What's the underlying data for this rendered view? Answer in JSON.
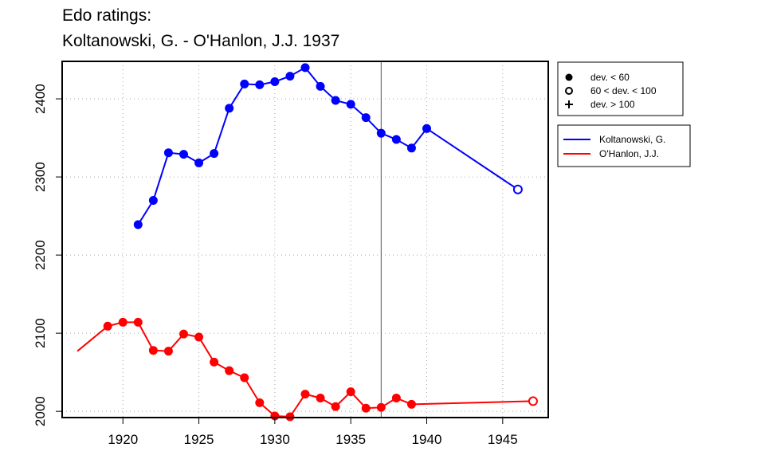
{
  "title_line1": "Edo ratings:",
  "title_line2": "Koltanowski, G. - O'Hanlon, J.J. 1937",
  "chart_data": {
    "type": "line",
    "title": "Edo ratings: Koltanowski, G. - O'Hanlon, J.J. 1937",
    "xlabel": "",
    "ylabel": "",
    "xlim": [
      1916,
      1948
    ],
    "ylim": [
      1992,
      2448
    ],
    "xticks": [
      1920,
      1925,
      1930,
      1935,
      1940,
      1945
    ],
    "yticks": [
      2000,
      2100,
      2200,
      2300,
      2400
    ],
    "grid": true,
    "vline_x": 1937,
    "marker_legend": [
      {
        "symbol": "filled-circle",
        "label": "dev. < 60"
      },
      {
        "symbol": "open-circle",
        "label": "60 < dev. < 100"
      },
      {
        "symbol": "plus",
        "label": "dev. > 100"
      }
    ],
    "series": [
      {
        "name": "Koltanowski, G.",
        "color": "#0000ff",
        "points": [
          {
            "x": 1921,
            "y": 2239,
            "m": "filled"
          },
          {
            "x": 1922,
            "y": 2270,
            "m": "filled"
          },
          {
            "x": 1923,
            "y": 2331,
            "m": "filled"
          },
          {
            "x": 1924,
            "y": 2329,
            "m": "filled"
          },
          {
            "x": 1925,
            "y": 2318,
            "m": "filled"
          },
          {
            "x": 1926,
            "y": 2330,
            "m": "filled"
          },
          {
            "x": 1927,
            "y": 2388,
            "m": "filled"
          },
          {
            "x": 1928,
            "y": 2419,
            "m": "filled"
          },
          {
            "x": 1929,
            "y": 2418,
            "m": "filled"
          },
          {
            "x": 1930,
            "y": 2422,
            "m": "filled"
          },
          {
            "x": 1931,
            "y": 2429,
            "m": "filled"
          },
          {
            "x": 1932,
            "y": 2440,
            "m": "filled"
          },
          {
            "x": 1933,
            "y": 2416,
            "m": "filled"
          },
          {
            "x": 1934,
            "y": 2398,
            "m": "filled"
          },
          {
            "x": 1935,
            "y": 2393,
            "m": "filled"
          },
          {
            "x": 1936,
            "y": 2376,
            "m": "filled"
          },
          {
            "x": 1937,
            "y": 2356,
            "m": "filled"
          },
          {
            "x": 1938,
            "y": 2348,
            "m": "filled"
          },
          {
            "x": 1939,
            "y": 2337,
            "m": "filled"
          },
          {
            "x": 1940,
            "y": 2362,
            "m": "filled"
          },
          {
            "x": 1946,
            "y": 2284,
            "m": "open"
          }
        ]
      },
      {
        "name": "O'Hanlon, J.J.",
        "color": "#ff0000",
        "points": [
          {
            "x": 1917,
            "y": 2077,
            "m": "none"
          },
          {
            "x": 1919,
            "y": 2109,
            "m": "filled"
          },
          {
            "x": 1920,
            "y": 2114,
            "m": "filled"
          },
          {
            "x": 1921,
            "y": 2114,
            "m": "filled"
          },
          {
            "x": 1922,
            "y": 2078,
            "m": "filled"
          },
          {
            "x": 1923,
            "y": 2077,
            "m": "filled"
          },
          {
            "x": 1924,
            "y": 2099,
            "m": "filled"
          },
          {
            "x": 1925,
            "y": 2095,
            "m": "filled"
          },
          {
            "x": 1926,
            "y": 2063,
            "m": "filled"
          },
          {
            "x": 1927,
            "y": 2052,
            "m": "filled"
          },
          {
            "x": 1928,
            "y": 2043,
            "m": "filled"
          },
          {
            "x": 1929,
            "y": 2011,
            "m": "filled"
          },
          {
            "x": 1930,
            "y": 1994,
            "m": "filled"
          },
          {
            "x": 1931,
            "y": 1993,
            "m": "filled"
          },
          {
            "x": 1932,
            "y": 2022,
            "m": "filled"
          },
          {
            "x": 1933,
            "y": 2017,
            "m": "filled"
          },
          {
            "x": 1934,
            "y": 2006,
            "m": "filled"
          },
          {
            "x": 1935,
            "y": 2025,
            "m": "filled"
          },
          {
            "x": 1936,
            "y": 2004,
            "m": "filled"
          },
          {
            "x": 1937,
            "y": 2005,
            "m": "filled"
          },
          {
            "x": 1938,
            "y": 2017,
            "m": "filled"
          },
          {
            "x": 1939,
            "y": 2009,
            "m": "filled"
          },
          {
            "x": 1947,
            "y": 2013,
            "m": "open"
          }
        ]
      }
    ]
  }
}
